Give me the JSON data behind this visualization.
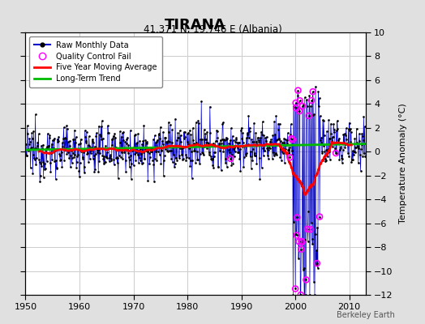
{
  "title": "TIRANA",
  "subtitle": "41.371 N, 19.746 E (Albania)",
  "ylabel": "Temperature Anomaly (°C)",
  "credit": "Berkeley Earth",
  "xlim": [
    1950,
    2013
  ],
  "ylim": [
    -12,
    10
  ],
  "yticks": [
    -12,
    -10,
    -8,
    -6,
    -4,
    -2,
    0,
    2,
    4,
    6,
    8,
    10
  ],
  "xticks": [
    1950,
    1960,
    1970,
    1980,
    1990,
    2000,
    2010
  ],
  "plot_bg": "#ffffff",
  "fig_bg": "#e0e0e0",
  "raw_color": "#0000cc",
  "ma_color": "#ff0000",
  "trend_color": "#00bb00",
  "qc_color": "#ff00ff",
  "grid_color": "#cccccc"
}
